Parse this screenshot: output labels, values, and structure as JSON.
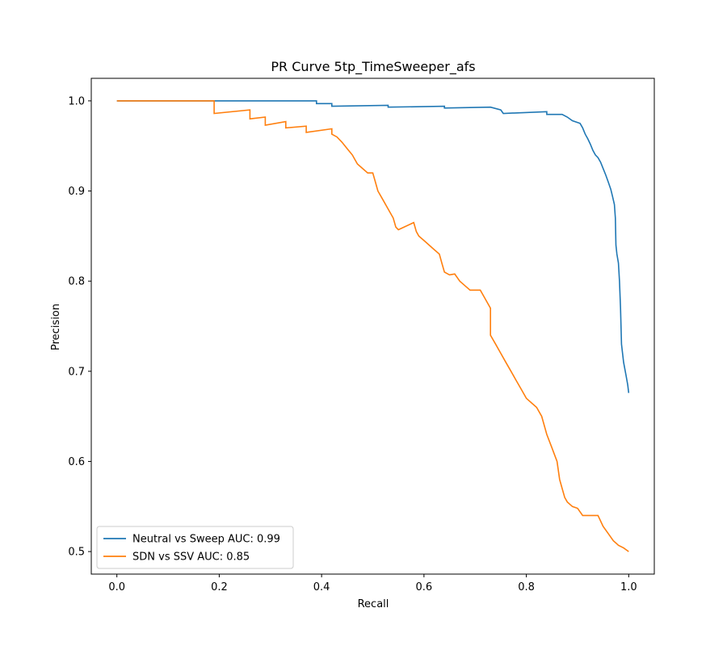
{
  "chart_data": {
    "type": "line",
    "title": "PR Curve 5tp_TimeSweeper_afs",
    "xlabel": "Recall",
    "ylabel": "Precision",
    "xlim": [
      -0.05,
      1.05
    ],
    "ylim": [
      0.475,
      1.025
    ],
    "xticks": [
      0.0,
      0.2,
      0.4,
      0.6,
      0.8,
      1.0
    ],
    "xtick_labels": [
      "0.0",
      "0.2",
      "0.4",
      "0.6",
      "0.8",
      "1.0"
    ],
    "yticks": [
      0.5,
      0.6,
      0.7,
      0.8,
      0.9,
      1.0
    ],
    "ytick_labels": [
      "0.5",
      "0.6",
      "0.7",
      "0.8",
      "0.9",
      "1.0"
    ],
    "grid": false,
    "legend_position": "lower-left",
    "series": [
      {
        "name": "Neutral vs Sweep AUC: 0.99",
        "color": "#1f77b4",
        "points": [
          [
            0.0,
            1.0
          ],
          [
            0.39,
            1.0
          ],
          [
            0.39,
            0.997
          ],
          [
            0.42,
            0.997
          ],
          [
            0.42,
            0.994
          ],
          [
            0.53,
            0.995
          ],
          [
            0.53,
            0.993
          ],
          [
            0.64,
            0.994
          ],
          [
            0.64,
            0.992
          ],
          [
            0.73,
            0.993
          ],
          [
            0.75,
            0.99
          ],
          [
            0.755,
            0.986
          ],
          [
            0.84,
            0.988
          ],
          [
            0.84,
            0.985
          ],
          [
            0.87,
            0.985
          ],
          [
            0.88,
            0.982
          ],
          [
            0.89,
            0.978
          ],
          [
            0.905,
            0.975
          ],
          [
            0.91,
            0.97
          ],
          [
            0.915,
            0.963
          ],
          [
            0.92,
            0.958
          ],
          [
            0.925,
            0.952
          ],
          [
            0.93,
            0.945
          ],
          [
            0.935,
            0.94
          ],
          [
            0.94,
            0.937
          ],
          [
            0.945,
            0.932
          ],
          [
            0.95,
            0.925
          ],
          [
            0.955,
            0.918
          ],
          [
            0.96,
            0.91
          ],
          [
            0.965,
            0.902
          ],
          [
            0.968,
            0.895
          ],
          [
            0.972,
            0.885
          ],
          [
            0.974,
            0.87
          ],
          [
            0.975,
            0.84
          ],
          [
            0.977,
            0.83
          ],
          [
            0.98,
            0.82
          ],
          [
            0.982,
            0.8
          ],
          [
            0.984,
            0.77
          ],
          [
            0.986,
            0.73
          ],
          [
            0.99,
            0.71
          ],
          [
            0.995,
            0.695
          ],
          [
            0.998,
            0.685
          ],
          [
            1.0,
            0.676
          ]
        ]
      },
      {
        "name": "SDN vs SSV AUC: 0.85",
        "color": "#ff7f0e",
        "points": [
          [
            0.0,
            1.0
          ],
          [
            0.19,
            1.0
          ],
          [
            0.19,
            0.986
          ],
          [
            0.26,
            0.99
          ],
          [
            0.26,
            0.98
          ],
          [
            0.29,
            0.982
          ],
          [
            0.29,
            0.973
          ],
          [
            0.33,
            0.977
          ],
          [
            0.33,
            0.97
          ],
          [
            0.37,
            0.972
          ],
          [
            0.37,
            0.965
          ],
          [
            0.42,
            0.969
          ],
          [
            0.42,
            0.963
          ],
          [
            0.43,
            0.96
          ],
          [
            0.44,
            0.954
          ],
          [
            0.45,
            0.947
          ],
          [
            0.46,
            0.94
          ],
          [
            0.465,
            0.935
          ],
          [
            0.47,
            0.93
          ],
          [
            0.48,
            0.925
          ],
          [
            0.49,
            0.92
          ],
          [
            0.5,
            0.92
          ],
          [
            0.505,
            0.91
          ],
          [
            0.51,
            0.9
          ],
          [
            0.52,
            0.89
          ],
          [
            0.53,
            0.88
          ],
          [
            0.54,
            0.87
          ],
          [
            0.545,
            0.86
          ],
          [
            0.55,
            0.857
          ],
          [
            0.58,
            0.865
          ],
          [
            0.585,
            0.855
          ],
          [
            0.59,
            0.85
          ],
          [
            0.6,
            0.845
          ],
          [
            0.61,
            0.84
          ],
          [
            0.62,
            0.835
          ],
          [
            0.63,
            0.83
          ],
          [
            0.635,
            0.82
          ],
          [
            0.64,
            0.81
          ],
          [
            0.65,
            0.807
          ],
          [
            0.66,
            0.808
          ],
          [
            0.67,
            0.8
          ],
          [
            0.68,
            0.795
          ],
          [
            0.69,
            0.79
          ],
          [
            0.71,
            0.79
          ],
          [
            0.72,
            0.78
          ],
          [
            0.73,
            0.77
          ],
          [
            0.73,
            0.74
          ],
          [
            0.74,
            0.73
          ],
          [
            0.75,
            0.72
          ],
          [
            0.76,
            0.71
          ],
          [
            0.77,
            0.7
          ],
          [
            0.78,
            0.69
          ],
          [
            0.79,
            0.68
          ],
          [
            0.8,
            0.67
          ],
          [
            0.81,
            0.665
          ],
          [
            0.82,
            0.66
          ],
          [
            0.83,
            0.65
          ],
          [
            0.84,
            0.63
          ],
          [
            0.85,
            0.615
          ],
          [
            0.86,
            0.6
          ],
          [
            0.865,
            0.58
          ],
          [
            0.87,
            0.57
          ],
          [
            0.875,
            0.56
          ],
          [
            0.88,
            0.555
          ],
          [
            0.89,
            0.55
          ],
          [
            0.9,
            0.548
          ],
          [
            0.91,
            0.54
          ],
          [
            0.94,
            0.54
          ],
          [
            0.95,
            0.528
          ],
          [
            0.96,
            0.52
          ],
          [
            0.97,
            0.512
          ],
          [
            0.98,
            0.507
          ],
          [
            0.99,
            0.504
          ],
          [
            1.0,
            0.5
          ]
        ]
      }
    ]
  }
}
